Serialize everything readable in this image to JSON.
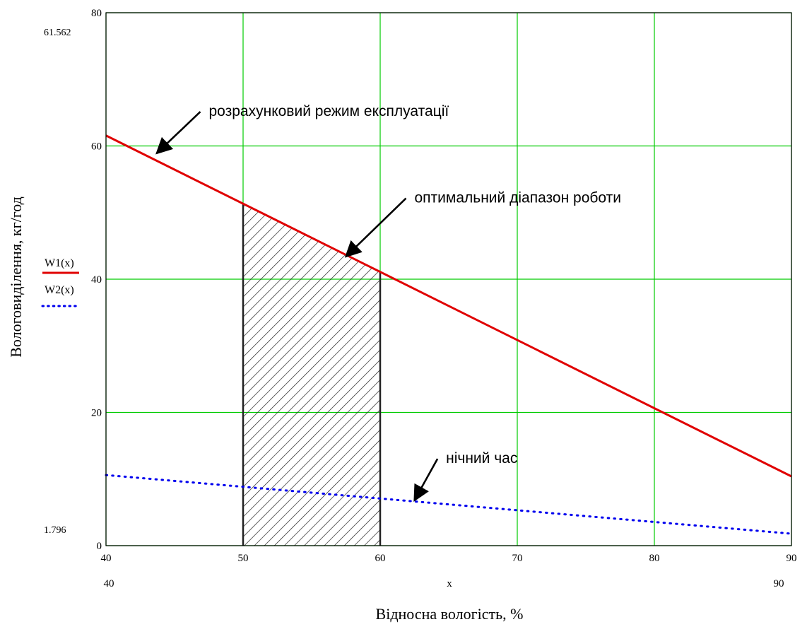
{
  "chart_data": {
    "type": "line",
    "xlabel": "Відносна вологість, %",
    "ylabel": "Вологовиділення, кг/год",
    "xlim": [
      40,
      90
    ],
    "ylim": [
      0,
      80
    ],
    "x_ticks": [
      40,
      50,
      60,
      70,
      80,
      90
    ],
    "y_ticks": [
      0,
      20,
      40,
      60,
      80
    ],
    "x_variable": "x",
    "x_range_labels": [
      "40",
      "90"
    ],
    "y_range_labels": [
      "61.562",
      "1.796"
    ],
    "grid": true,
    "grid_color": "#00cc00",
    "legend_placement": "left",
    "series": [
      {
        "name": "W1(x)",
        "color": "#e00000",
        "style": "solid",
        "x": [
          40,
          90
        ],
        "y": [
          61.562,
          10.4
        ]
      },
      {
        "name": "W2(x)",
        "color": "#0000ee",
        "style": "dotted",
        "x": [
          40,
          90
        ],
        "y": [
          10.6,
          1.796
        ]
      }
    ],
    "shaded_region": {
      "x_from": 50,
      "x_to": 60,
      "pattern": "diagonal-hatch"
    },
    "annotations": [
      {
        "text": "розрахунковий режим експлуатації",
        "point": [
          43.7,
          58.9
        ],
        "text_at": [
          47.5,
          64.5
        ]
      },
      {
        "text": "оптимальний діапазон роботи",
        "point": [
          57.5,
          43.4
        ],
        "text_at": [
          62.5,
          51.5
        ]
      },
      {
        "text": "нічний час",
        "point": [
          62.5,
          6.8
        ],
        "text_at": [
          64.8,
          12.4
        ]
      }
    ]
  }
}
